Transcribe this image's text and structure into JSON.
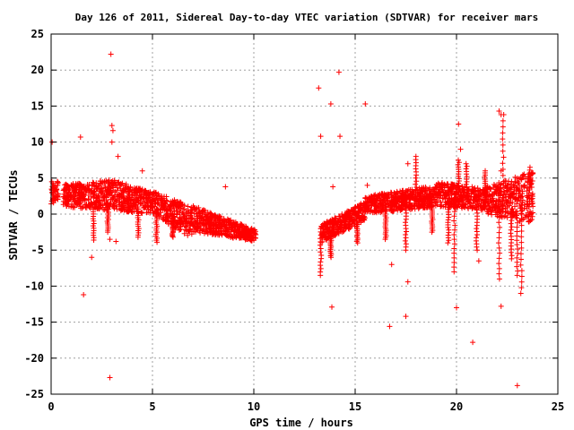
{
  "chart_data": {
    "type": "scatter",
    "title": "Day 126 of 2011, Sidereal Day-to-day VTEC variation (SDTVAR) for receiver mars",
    "xlabel": "GPS time / hours",
    "ylabel": "SDTVAR / TECUs",
    "xlim": [
      0,
      25
    ],
    "ylim": [
      -25,
      25
    ],
    "xticks": [
      0,
      5,
      10,
      15,
      20,
      25
    ],
    "yticks": [
      -25,
      -20,
      -15,
      -10,
      -5,
      0,
      5,
      10,
      15,
      20,
      25
    ],
    "grid": true,
    "marker": "plus",
    "color": "#ff0000",
    "series": [
      {
        "outliers": [
          [
            0.05,
            10
          ],
          [
            1.45,
            10.7
          ],
          [
            1.6,
            -11.2
          ],
          [
            2.0,
            -6
          ],
          [
            2.95,
            22.2
          ],
          [
            3.0,
            12.3
          ],
          [
            3.05,
            11.6
          ],
          [
            3.0,
            10
          ],
          [
            2.9,
            -3.5
          ],
          [
            2.9,
            -22.7
          ],
          [
            3.2,
            -3.8
          ],
          [
            3.3,
            8
          ],
          [
            4.5,
            6
          ],
          [
            8.6,
            3.8
          ],
          [
            13.2,
            17.5
          ],
          [
            13.3,
            10.8
          ],
          [
            13.8,
            15.3
          ],
          [
            13.85,
            -12.9
          ],
          [
            13.9,
            3.8
          ],
          [
            14.2,
            19.7
          ],
          [
            14.25,
            10.8
          ],
          [
            15.5,
            15.3
          ],
          [
            15.6,
            4
          ],
          [
            16.7,
            -15.6
          ],
          [
            16.8,
            -7
          ],
          [
            17.5,
            -14.2
          ],
          [
            17.6,
            -9.4
          ],
          [
            17.6,
            7
          ],
          [
            20.0,
            -13
          ],
          [
            20.1,
            12.5
          ],
          [
            20.2,
            9
          ],
          [
            20.8,
            -17.8
          ],
          [
            21.1,
            -6.5
          ],
          [
            22.2,
            -12.8
          ],
          [
            22.1,
            14.3
          ],
          [
            22.2,
            13.8
          ],
          [
            23.0,
            -23.8
          ],
          [
            22.2,
            6
          ],
          [
            23.5,
            4.5
          ],
          [
            22.5,
            4
          ]
        ],
        "bands": [
          {
            "x": [
              0.0,
              0.35
            ],
            "y_top": [
              5.2,
              4.5
            ],
            "y_bottom": [
              1.2,
              2.0
            ]
          },
          {
            "x": [
              0.6,
              3.0
            ],
            "y_top": [
              4.2,
              4.8
            ],
            "y_bottom": [
              1.0,
              0.5
            ]
          },
          {
            "x": [
              3.0,
              5.0
            ],
            "y_top": [
              4.8,
              3.0
            ],
            "y_bottom": [
              0.5,
              0.0
            ]
          },
          {
            "x": [
              5.0,
              7.0
            ],
            "y_top": [
              3.2,
              1.0
            ],
            "y_bottom": [
              0.0,
              -3.5
            ]
          },
          {
            "x": [
              7.0,
              10.1
            ],
            "y_top": [
              1.2,
              -2.2
            ],
            "y_bottom": [
              -2.5,
              -3.8
            ]
          },
          {
            "x": [
              13.3,
              15.5
            ],
            "y_top": [
              -1.5,
              1.8
            ],
            "y_bottom": [
              -4.0,
              -1.0
            ]
          },
          {
            "x": [
              15.5,
              19.0
            ],
            "y_top": [
              2.5,
              4.0
            ],
            "y_bottom": [
              0.0,
              1.0
            ]
          },
          {
            "x": [
              19.0,
              21.5
            ],
            "y_top": [
              4.5,
              3.5
            ],
            "y_bottom": [
              1.0,
              0.5
            ]
          },
          {
            "x": [
              21.5,
              23.8
            ],
            "y_top": [
              3.8,
              6.0
            ],
            "y_bottom": [
              0.0,
              -1.5
            ]
          }
        ],
        "spikes": [
          {
            "x": 2.1,
            "y": [
              1,
              -3.6
            ]
          },
          {
            "x": 2.8,
            "y": [
              1,
              -2.5
            ]
          },
          {
            "x": 4.3,
            "y": [
              1,
              -3.2
            ]
          },
          {
            "x": 5.2,
            "y": [
              0,
              -3.9
            ]
          },
          {
            "x": 6.0,
            "y": [
              -1,
              -3.2
            ]
          },
          {
            "x": 13.3,
            "y": [
              -2,
              -8.5
            ]
          },
          {
            "x": 13.8,
            "y": [
              -3,
              -6
            ]
          },
          {
            "x": 15.1,
            "y": [
              -1,
              -4
            ]
          },
          {
            "x": 16.5,
            "y": [
              0,
              -3.5
            ]
          },
          {
            "x": 17.5,
            "y": [
              1,
              -5
            ]
          },
          {
            "x": 18.0,
            "y": [
              2,
              8
            ]
          },
          {
            "x": 18.8,
            "y": [
              1,
              -2.5
            ]
          },
          {
            "x": 19.6,
            "y": [
              1,
              -4
            ]
          },
          {
            "x": 19.9,
            "y": [
              1,
              -8
            ]
          },
          {
            "x": 20.1,
            "y": [
              3,
              7.5
            ]
          },
          {
            "x": 20.5,
            "y": [
              2,
              7
            ]
          },
          {
            "x": 21.0,
            "y": [
              1,
              -5
            ]
          },
          {
            "x": 21.4,
            "y": [
              2,
              6
            ]
          },
          {
            "x": 22.1,
            "y": [
              1,
              -9
            ]
          },
          {
            "x": 22.3,
            "y": [
              2,
              13.8
            ]
          },
          {
            "x": 22.7,
            "y": [
              0,
              -6.2
            ]
          },
          {
            "x": 23.0,
            "y": [
              0,
              -8.5
            ]
          },
          {
            "x": 23.2,
            "y": [
              0,
              -11
            ]
          },
          {
            "x": 23.6,
            "y": [
              1,
              6.5
            ]
          }
        ]
      }
    ]
  }
}
